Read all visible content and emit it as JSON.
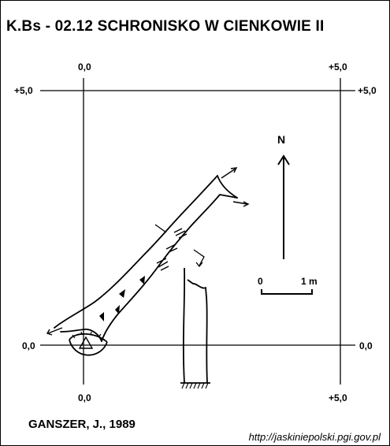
{
  "header": {
    "title": "K.Bs - 02.12  SCHRONISKO W CIENKOWIE II"
  },
  "grid_labels": {
    "top_left_x": "0,0",
    "top_right_x": "+5,0",
    "left_top_y": "+5,0",
    "right_top_y": "+5,0",
    "left_bottom_y": "0,0",
    "right_bottom_y": "0,0",
    "bottom_left_x": "0,0",
    "bottom_right_x": "+5,0"
  },
  "north": {
    "label": "N"
  },
  "scale_bar": {
    "start_label": "0",
    "end_label": "1 m"
  },
  "footer": {
    "author": "GANSZER, J., 1989",
    "url": "http://jaskiniepolski.pgi.gov.pl"
  },
  "icons": [
    "north-arrow-icon",
    "entrance-triangle-icon",
    "scale-bar-icon"
  ]
}
